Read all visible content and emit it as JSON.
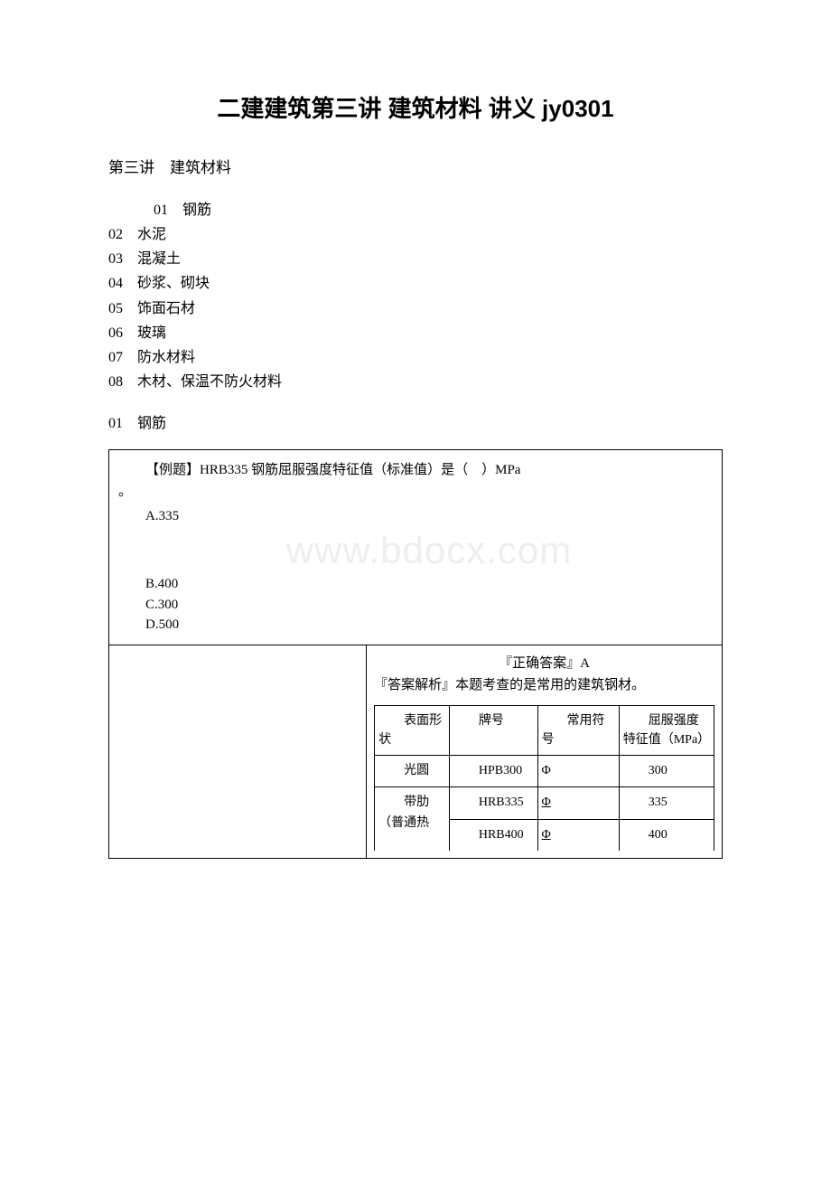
{
  "title": "二建建筑第三讲 建筑材料 讲义 jy0301",
  "section_heading": "第三讲　建筑材料",
  "toc": {
    "items": [
      "01　钢筋",
      "02　水泥",
      "03　混凝土",
      "04　砂浆、砌块",
      "05　饰面石材",
      "06　玻璃",
      "07　防水材料",
      "08　木材、保温不防火材料"
    ]
  },
  "sub_heading": "01　钢筋",
  "watermark": "www.bdocx.com",
  "question": {
    "prefix": "【例题】",
    "text": "HRB335 钢筋屈服强度特征值（标准值）是（　）MPa",
    "suffix": "。",
    "options": {
      "a": "A.335",
      "b": "B.400",
      "c": "C.300",
      "d": "D.500"
    }
  },
  "answer": {
    "correct": "『正确答案』A",
    "analysis": "『答案解析』本题考查的是常用的建筑钢材。"
  },
  "inner_table": {
    "headers": {
      "surface": "表面形状",
      "brand": "牌号",
      "symbol": "常用符号",
      "value": "屈服强度特征值（MPa）"
    },
    "rows": [
      {
        "surface": "光圆",
        "brand": "HPB300",
        "symbol": "Φ",
        "value": "300"
      },
      {
        "surface_merged": "带肋（普通热",
        "brand": "HRB335",
        "symbol_underline": "Φ",
        "value": "335"
      },
      {
        "brand": "HRB400",
        "symbol_underline": "Φ",
        "value": "400"
      }
    ]
  },
  "colors": {
    "text": "#000000",
    "background": "#ffffff",
    "watermark": "#eeeeee",
    "border": "#000000"
  }
}
